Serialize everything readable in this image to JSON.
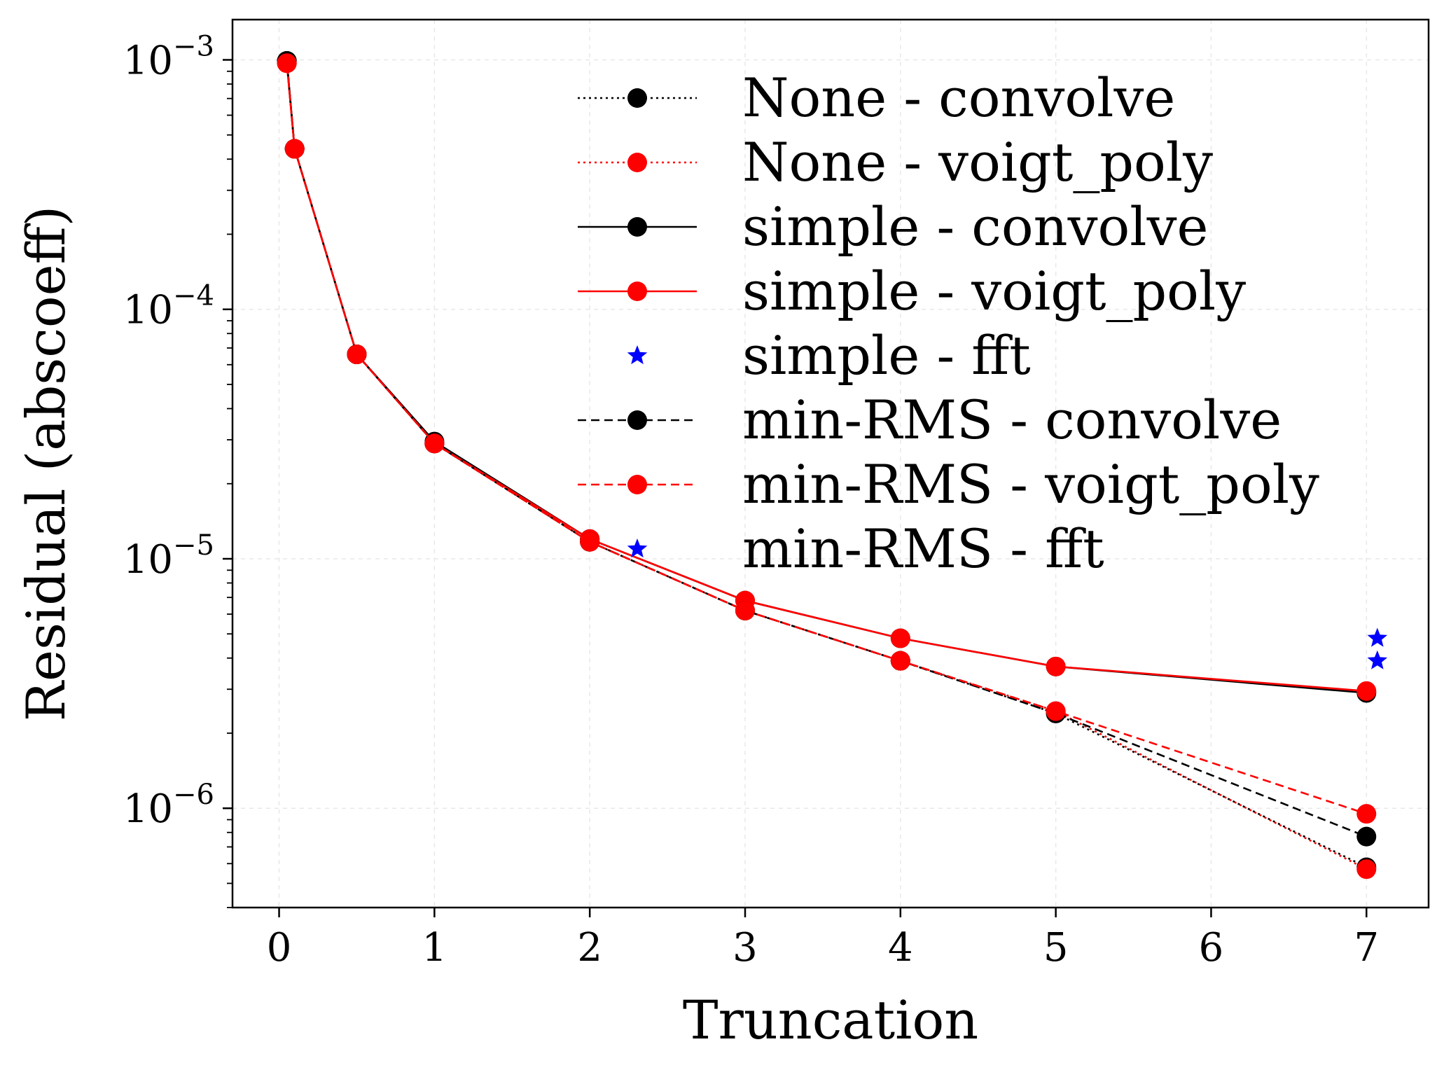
{
  "chart_data": {
    "type": "line",
    "xlabel": "Truncation",
    "ylabel": "Residual (abscoeff)",
    "xlim": [
      -0.3,
      7.4
    ],
    "ylim": [
      4e-07,
      0.00145
    ],
    "yscale": "log",
    "grid": true,
    "legend_position": "top-right",
    "x_ticks": [
      "0",
      "1",
      "2",
      "3",
      "4",
      "5",
      "6",
      "7"
    ],
    "y_ticks": [
      {
        "base": "10",
        "exp": "−3"
      },
      {
        "base": "10",
        "exp": "−4"
      },
      {
        "base": "10",
        "exp": "−5"
      },
      {
        "base": "10",
        "exp": "−6"
      }
    ],
    "series": [
      {
        "name": "None - convolve",
        "color": "#000000",
        "line": "dotted",
        "marker": "circle",
        "x": [
          0.05,
          0.1,
          0.5,
          1,
          2,
          3,
          4,
          5,
          7
        ],
        "y": [
          0.00099,
          0.00044,
          6.6e-05,
          2.9e-05,
          1.17e-05,
          6.2e-06,
          3.9e-06,
          2.4e-06,
          5.8e-07
        ]
      },
      {
        "name": "None - voigt_poly",
        "color": "#ff0000",
        "line": "dotted",
        "marker": "circle",
        "x": [
          0.05,
          0.1,
          0.5,
          1,
          2,
          3,
          4,
          5,
          7
        ],
        "y": [
          0.00097,
          0.00044,
          6.6e-05,
          2.9e-05,
          1.17e-05,
          6.2e-06,
          3.9e-06,
          2.45e-06,
          5.7e-07
        ]
      },
      {
        "name": "simple - convolve",
        "color": "#000000",
        "line": "solid",
        "marker": "circle",
        "x": [
          0.05,
          0.1,
          0.5,
          1,
          2,
          3,
          4,
          5,
          7
        ],
        "y": [
          0.00099,
          0.00044,
          6.6e-05,
          2.95e-05,
          1.2e-05,
          6.8e-06,
          4.8e-06,
          3.7e-06,
          2.9e-06
        ]
      },
      {
        "name": "simple - voigt_poly",
        "color": "#ff0000",
        "line": "solid",
        "marker": "circle",
        "x": [
          0.05,
          0.1,
          0.5,
          1,
          2,
          3,
          4,
          5,
          7
        ],
        "y": [
          0.00097,
          0.00044,
          6.6e-05,
          2.9e-05,
          1.2e-05,
          6.8e-06,
          4.8e-06,
          3.7e-06,
          2.95e-06
        ]
      },
      {
        "name": "simple - fft",
        "color": "#0000ff",
        "line": "none",
        "marker": "star",
        "x": [
          7.07
        ],
        "y": [
          4.8e-06
        ]
      },
      {
        "name": "min-RMS - convolve",
        "color": "#000000",
        "line": "dashed",
        "marker": "circle",
        "x": [
          0.05,
          0.1,
          0.5,
          1,
          2,
          3,
          4,
          5,
          7
        ],
        "y": [
          0.00099,
          0.00044,
          6.6e-05,
          2.9e-05,
          1.17e-05,
          6.2e-06,
          3.9e-06,
          2.4e-06,
          7.7e-07
        ]
      },
      {
        "name": "min-RMS - voigt_poly",
        "color": "#ff0000",
        "line": "dashed",
        "marker": "circle",
        "x": [
          0.05,
          0.1,
          0.5,
          1,
          2,
          3,
          4,
          5,
          7
        ],
        "y": [
          0.00097,
          0.00044,
          6.6e-05,
          2.9e-05,
          1.17e-05,
          6.2e-06,
          3.9e-06,
          2.45e-06,
          9.5e-07
        ]
      },
      {
        "name": "min-RMS - fft",
        "color": "#0000ff",
        "line": "none",
        "marker": "star",
        "x": [
          7.07
        ],
        "y": [
          3.9e-06
        ]
      }
    ]
  }
}
